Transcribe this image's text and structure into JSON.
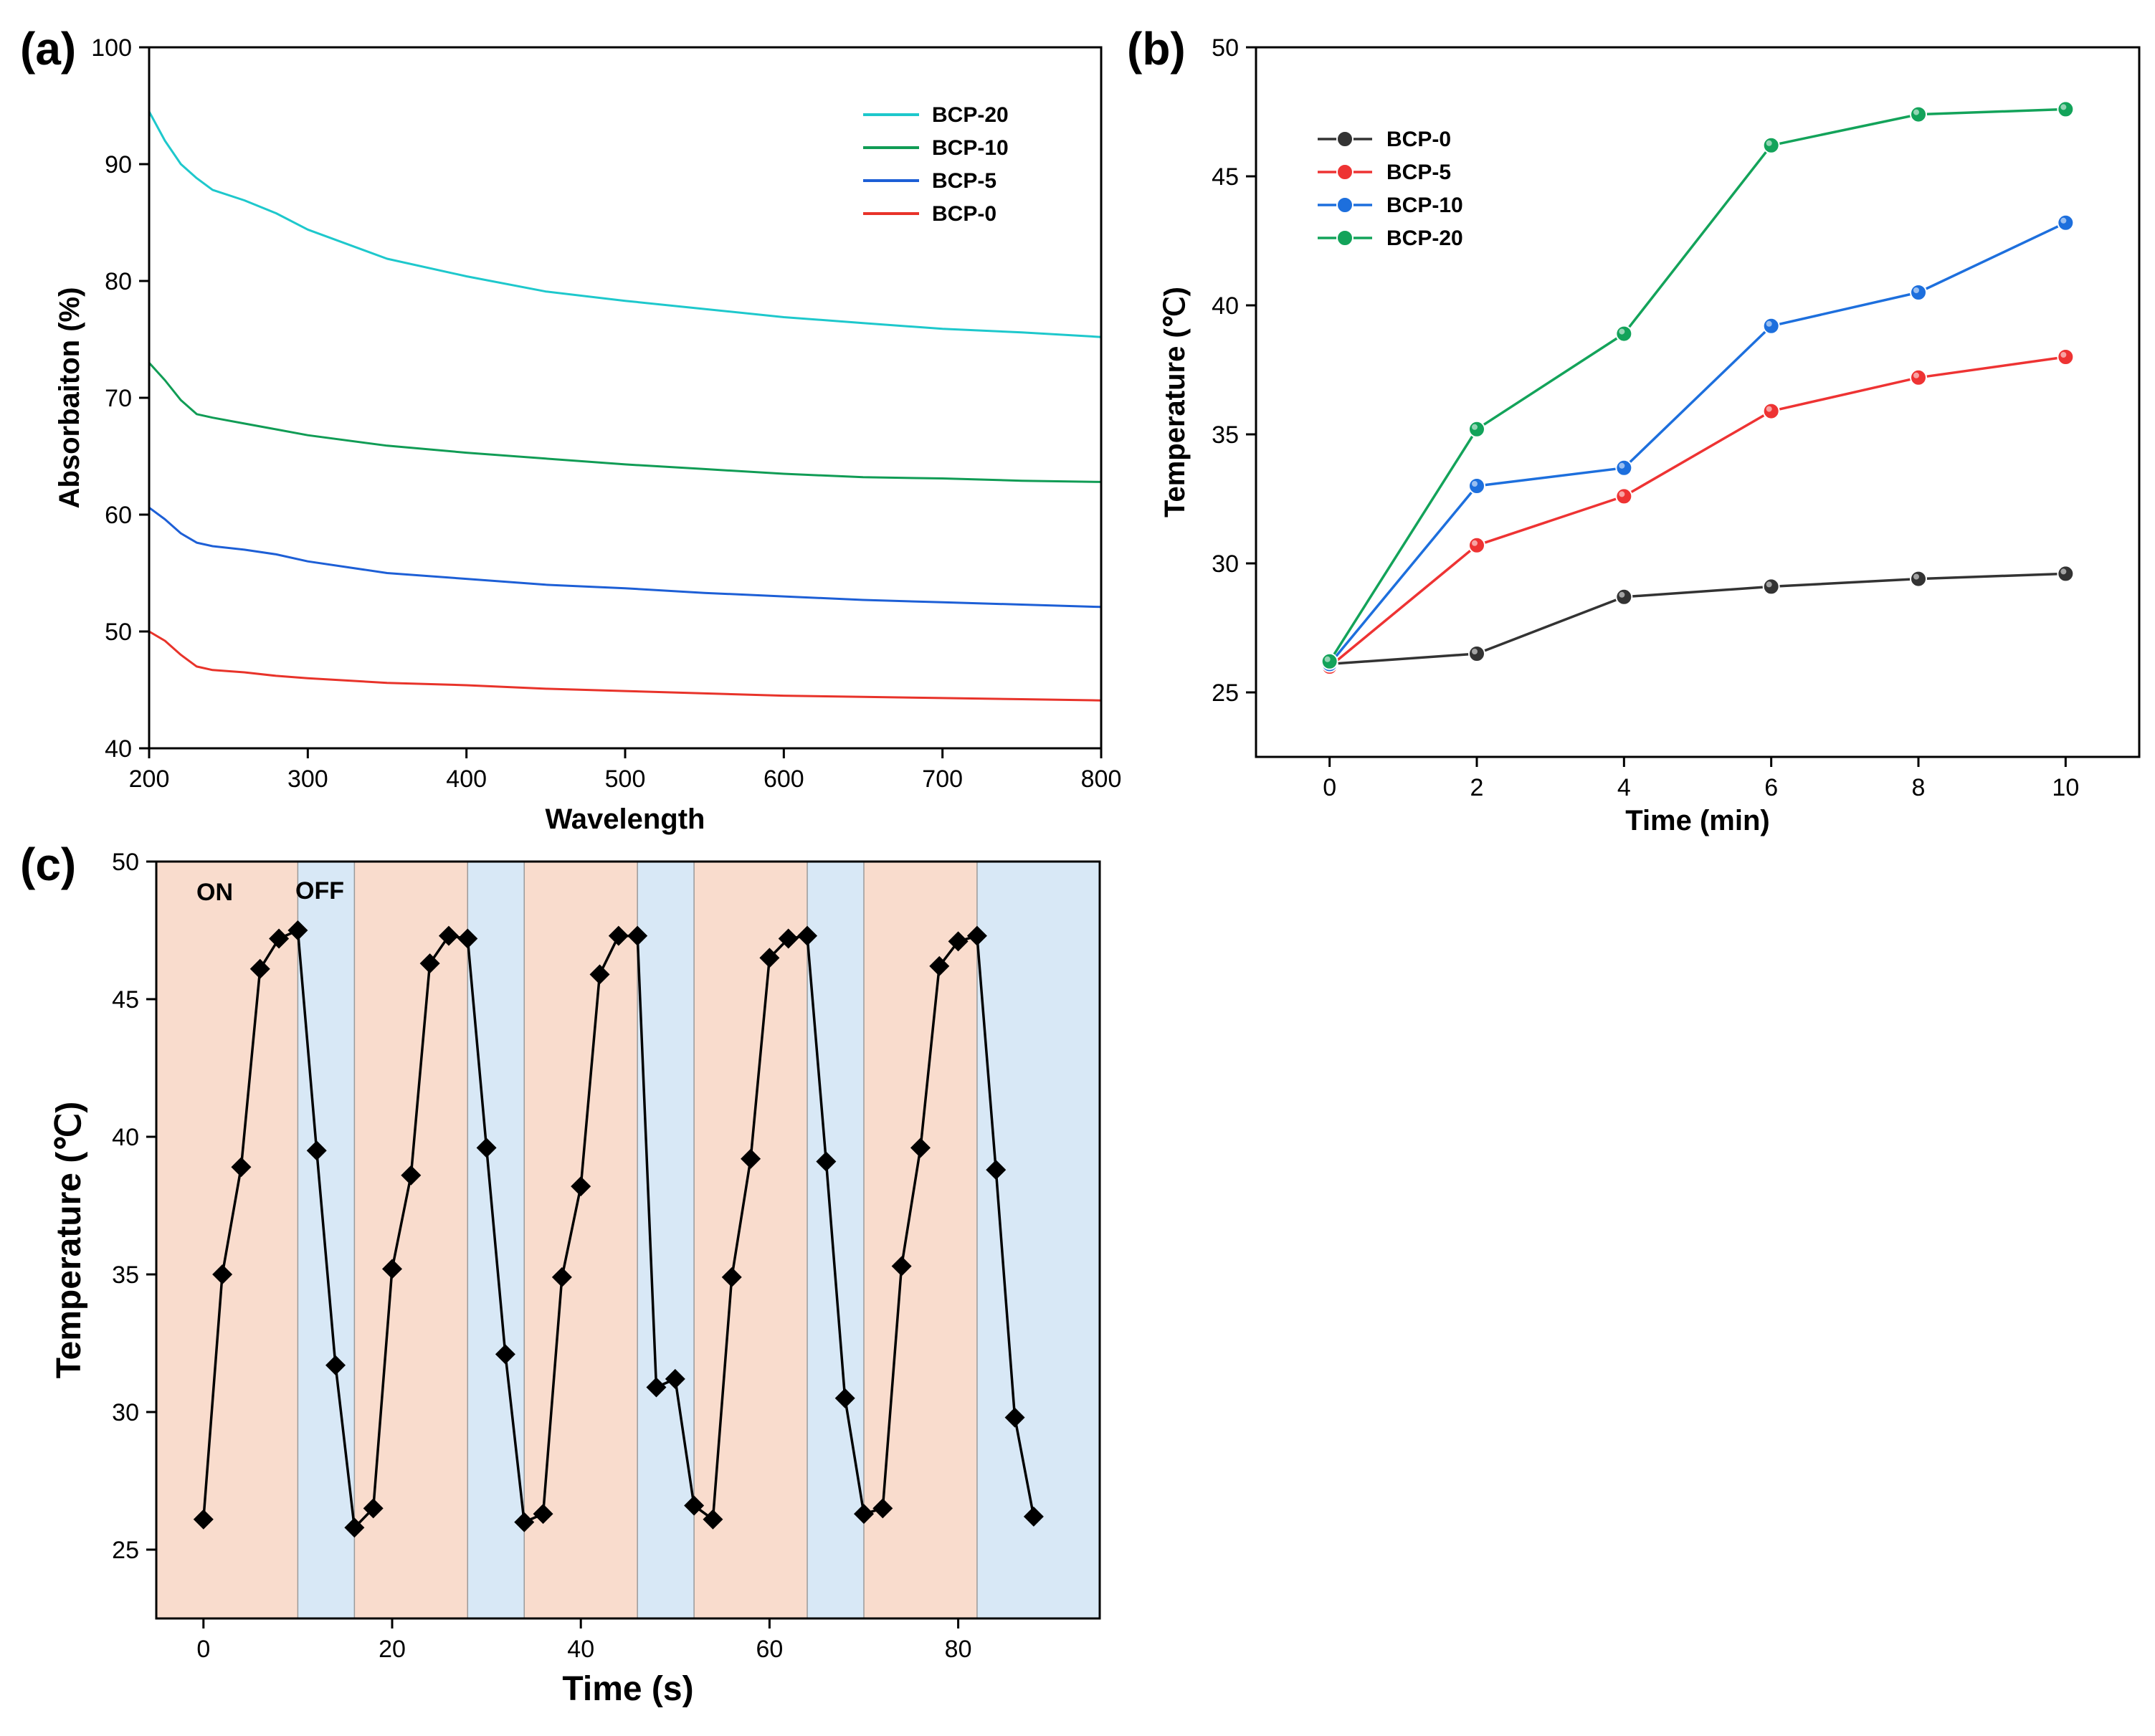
{
  "chart_data": [
    {
      "id": "a",
      "panel_label": "(a)",
      "type": "line",
      "xlabel": "Wavelength",
      "ylabel": "Absorbaiton (%)",
      "xlim": [
        200,
        800
      ],
      "ylim": [
        40,
        100
      ],
      "xticks": [
        "200",
        "300",
        "400",
        "500",
        "600",
        "700",
        "800"
      ],
      "yticks": [
        "40",
        "50",
        "60",
        "70",
        "80",
        "90",
        "100"
      ],
      "legend_position": "top-right",
      "x": [
        200,
        210,
        220,
        230,
        240,
        260,
        280,
        300,
        350,
        400,
        450,
        500,
        550,
        600,
        650,
        700,
        750,
        800
      ],
      "series": [
        {
          "name": "BCP-20",
          "color": "#1ec8cc",
          "values": [
            94.5,
            92.0,
            90.0,
            88.8,
            87.8,
            86.9,
            85.8,
            84.4,
            81.9,
            80.4,
            79.1,
            78.3,
            77.6,
            76.9,
            76.4,
            75.9,
            75.6,
            75.2
          ]
        },
        {
          "name": "BCP-10",
          "color": "#109c55",
          "values": [
            73.0,
            71.5,
            69.8,
            68.6,
            68.3,
            67.8,
            67.3,
            66.8,
            65.9,
            65.3,
            64.8,
            64.3,
            63.9,
            63.5,
            63.2,
            63.1,
            62.9,
            62.8
          ]
        },
        {
          "name": "BCP-5",
          "color": "#1d5fd6",
          "values": [
            60.6,
            59.6,
            58.4,
            57.6,
            57.3,
            57.0,
            56.6,
            56.0,
            55.0,
            54.5,
            54.0,
            53.7,
            53.3,
            53.0,
            52.7,
            52.5,
            52.3,
            52.1
          ]
        },
        {
          "name": "BCP-0",
          "color": "#e8332a",
          "values": [
            50.0,
            49.2,
            48.0,
            47.0,
            46.7,
            46.5,
            46.2,
            46.0,
            45.6,
            45.4,
            45.1,
            44.9,
            44.7,
            44.5,
            44.4,
            44.3,
            44.2,
            44.1
          ]
        }
      ]
    },
    {
      "id": "b",
      "panel_label": "(b)",
      "type": "line",
      "xlabel": "Time (min)",
      "ylabel": "Temperature (℃)",
      "xlim": [
        -1,
        11
      ],
      "ylim": [
        22.5,
        50
      ],
      "xticks": [
        "0",
        "2",
        "4",
        "6",
        "8",
        "10"
      ],
      "yticks": [
        "25",
        "30",
        "35",
        "40",
        "45",
        "50"
      ],
      "legend_position": "top-left",
      "x": [
        0,
        2,
        4,
        6,
        8,
        10
      ],
      "series": [
        {
          "name": "BCP-0",
          "color": "#333333",
          "values": [
            26.1,
            26.5,
            28.7,
            29.1,
            29.4,
            29.6
          ]
        },
        {
          "name": "BCP-5",
          "color": "#ee3333",
          "values": [
            26.0,
            30.7,
            32.6,
            35.9,
            37.2,
            38.0
          ]
        },
        {
          "name": "BCP-10",
          "color": "#1d6fdd",
          "values": [
            26.1,
            33.0,
            33.7,
            39.2,
            40.5,
            43.2
          ]
        },
        {
          "name": "BCP-20",
          "color": "#13a35a",
          "values": [
            26.2,
            35.2,
            38.9,
            46.2,
            47.4,
            47.6
          ]
        }
      ]
    },
    {
      "id": "c",
      "panel_label": "(c)",
      "type": "line",
      "xlabel": "Time (s)",
      "ylabel": "Temperature (℃)",
      "xlim": [
        -5,
        95
      ],
      "ylim": [
        22.5,
        50
      ],
      "xticks": [
        "0",
        "20",
        "40",
        "60",
        "80"
      ],
      "yticks": [
        "25",
        "30",
        "35",
        "40",
        "45",
        "50"
      ],
      "phase_labels": {
        "on": "ON",
        "off": "OFF"
      },
      "phase_colors": {
        "on": "#f9dccd",
        "off": "#d8e8f6"
      },
      "phases": [
        {
          "state": "on",
          "start": -5,
          "end": 10
        },
        {
          "state": "off",
          "start": 10,
          "end": 16
        },
        {
          "state": "on",
          "start": 16,
          "end": 28
        },
        {
          "state": "off",
          "start": 28,
          "end": 34
        },
        {
          "state": "on",
          "start": 34,
          "end": 46
        },
        {
          "state": "off",
          "start": 46,
          "end": 52
        },
        {
          "state": "on",
          "start": 52,
          "end": 64
        },
        {
          "state": "off",
          "start": 64,
          "end": 70
        },
        {
          "state": "on",
          "start": 70,
          "end": 82
        },
        {
          "state": "off",
          "start": 82,
          "end": 95
        }
      ],
      "series": [
        {
          "color": "#000000",
          "x": [
            0,
            2,
            4,
            6,
            8,
            10,
            12,
            14,
            16,
            18,
            20,
            22,
            24,
            26,
            28,
            30,
            32,
            34,
            36,
            38,
            40,
            42,
            44,
            46,
            48,
            50,
            52,
            54,
            56,
            58,
            60,
            62,
            64,
            66,
            68,
            70,
            72,
            74,
            76,
            78,
            80,
            82,
            84,
            86,
            88
          ],
          "values": [
            26.1,
            35.0,
            38.9,
            46.1,
            47.2,
            47.5,
            39.5,
            31.7,
            25.8,
            26.5,
            35.2,
            38.6,
            46.3,
            47.3,
            47.2,
            39.6,
            32.1,
            26.0,
            26.3,
            34.9,
            38.2,
            45.9,
            47.3,
            47.3,
            30.9,
            31.2,
            26.6,
            26.1,
            34.9,
            39.2,
            46.5,
            47.2,
            47.3,
            39.1,
            30.5,
            26.3,
            26.5,
            35.3,
            39.6,
            46.2,
            47.1,
            47.3,
            38.8,
            29.8,
            26.2
          ]
        }
      ]
    }
  ]
}
